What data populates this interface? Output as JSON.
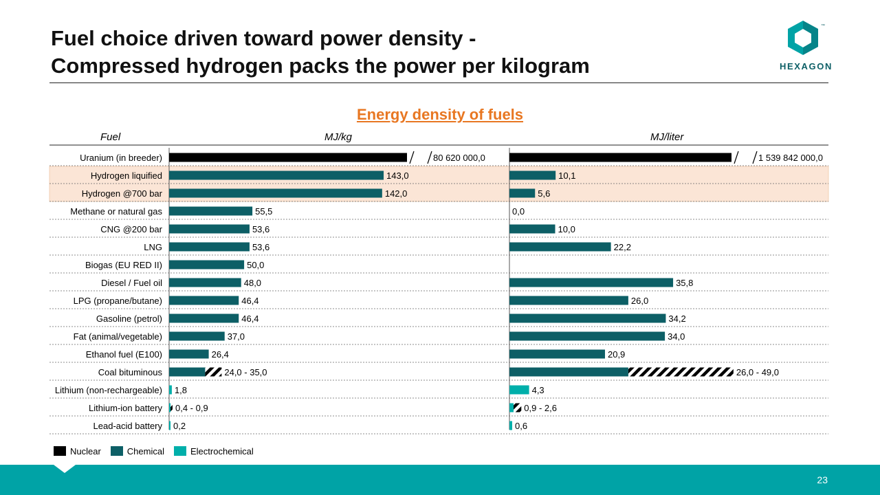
{
  "title": {
    "line1": "Fuel choice driven toward power density -",
    "line2": "Compressed hydrogen packs the power per kilogram"
  },
  "logo": {
    "text": "HEXAGON",
    "tm": "™"
  },
  "chart_data": {
    "type": "bar",
    "title": "Energy density of fuels",
    "column_headers": {
      "fuel": "Fuel",
      "mass": "MJ/kg",
      "volume": "MJ/liter"
    },
    "xlim_mass": [
      0,
      155
    ],
    "xlim_volume": [
      0,
      45
    ],
    "highlight_rows": [
      "Hydrogen liquified",
      "Hydrogen @700 bar"
    ],
    "rows": [
      {
        "fuel": "Uranium (in breeder)",
        "category": "Nuclear",
        "mass": 80620000,
        "mass_label": "80 620 000,0",
        "mass_broken": true,
        "volume": 1539842000,
        "volume_label": "1 539 842 000,0",
        "volume_broken": true
      },
      {
        "fuel": "Hydrogen liquified",
        "category": "Chemical",
        "mass": 143.0,
        "mass_label": "143,0",
        "volume": 10.1,
        "volume_label": "10,1"
      },
      {
        "fuel": "Hydrogen @700 bar",
        "category": "Chemical",
        "mass": 142.0,
        "mass_label": "142,0",
        "volume": 5.6,
        "volume_label": "5,6"
      },
      {
        "fuel": "Methane or natural gas",
        "category": "Chemical",
        "mass": 55.5,
        "mass_label": "55,5",
        "volume": 0.0,
        "volume_label": "0,0"
      },
      {
        "fuel": "CNG @200 bar",
        "category": "Chemical",
        "mass": 53.6,
        "mass_label": "53,6",
        "volume": 10.0,
        "volume_label": "10,0"
      },
      {
        "fuel": "LNG",
        "category": "Chemical",
        "mass": 53.6,
        "mass_label": "53,6",
        "volume": 22.2,
        "volume_label": "22,2"
      },
      {
        "fuel": "Biogas (EU RED II)",
        "category": "Chemical",
        "mass": 50.0,
        "mass_label": "50,0",
        "volume": null,
        "volume_label": ""
      },
      {
        "fuel": "Diesel / Fuel oil",
        "category": "Chemical",
        "mass": 48.0,
        "mass_label": "48,0",
        "volume": 35.8,
        "volume_label": "35,8"
      },
      {
        "fuel": "LPG (propane/butane)",
        "category": "Chemical",
        "mass": 46.4,
        "mass_label": "46,4",
        "volume": 26.0,
        "volume_label": "26,0"
      },
      {
        "fuel": "Gasoline (petrol)",
        "category": "Chemical",
        "mass": 46.4,
        "mass_label": "46,4",
        "volume": 34.2,
        "volume_label": "34,2"
      },
      {
        "fuel": "Fat (animal/vegetable)",
        "category": "Chemical",
        "mass": 37.0,
        "mass_label": "37,0",
        "volume": 34.0,
        "volume_label": "34,0"
      },
      {
        "fuel": "Ethanol fuel (E100)",
        "category": "Chemical",
        "mass": 26.4,
        "mass_label": "26,4",
        "volume": 20.9,
        "volume_label": "20,9"
      },
      {
        "fuel": "Coal bituminous",
        "category": "Chemical",
        "mass": 24.0,
        "mass_max": 35.0,
        "mass_label": "24,0 - 35,0",
        "volume": 26.0,
        "volume_max": 49.0,
        "volume_label": "26,0 - 49,0"
      },
      {
        "fuel": "Lithium (non-rechargeable)",
        "category": "Electrochemical",
        "mass": 1.8,
        "mass_label": "1,8",
        "volume": 4.3,
        "volume_label": "4,3"
      },
      {
        "fuel": "Lithium-ion battery",
        "category": "Electrochemical",
        "mass": 0.4,
        "mass_max": 0.9,
        "mass_label": "0,4 - 0,9",
        "volume": 0.9,
        "volume_max": 2.6,
        "volume_label": "0,9 - 2,6"
      },
      {
        "fuel": "Lead-acid battery",
        "category": "Electrochemical",
        "mass": 0.2,
        "mass_label": "0,2",
        "volume": 0.6,
        "volume_label": "0,6"
      }
    ],
    "legend": [
      "Nuclear",
      "Chemical",
      "Electrochemical"
    ],
    "colors": {
      "Nuclear": "#000000",
      "Chemical": "#0d5f66",
      "Electrochemical": "#00afaa",
      "highlight": "#fbe5d6",
      "title": "#e87722"
    }
  },
  "footer": {
    "page_number": "23"
  }
}
